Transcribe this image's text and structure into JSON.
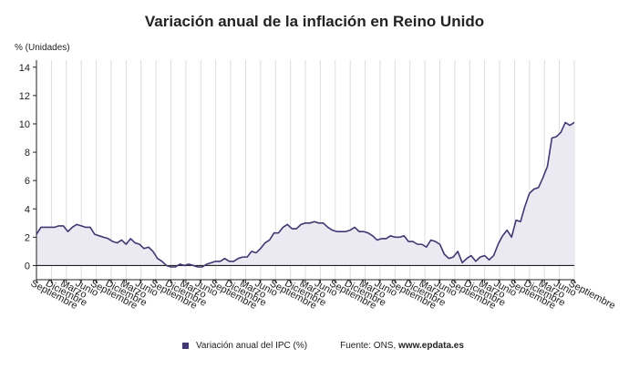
{
  "title": "Variación anual de la inflación en Reino Unido",
  "colors": {
    "line": "#413871",
    "fill": "#ebeaf3",
    "axis": "#222222",
    "grid": "#dddddd"
  },
  "legend": {
    "series_label": "Variación anual del IPC (%)",
    "source_prefix": "Fuente: ONS, ",
    "source_site": "www.epdata.es"
  },
  "chart_data": {
    "type": "area",
    "ylabel": "% (Unidades)",
    "ylim": [
      -1,
      14.5
    ],
    "yticks": [
      0,
      2,
      4,
      6,
      8,
      10,
      12,
      14
    ],
    "grid": "vertical",
    "x_tick_labels": [
      "Septiembre",
      "Diciembre",
      "Marzo",
      "Junio",
      "Septiembre",
      "Diciembre",
      "Marzo",
      "Junio",
      "Septiembre",
      "Diciembre",
      "Marzo",
      "Junio",
      "Septiembre",
      "Diciembre",
      "Marzo",
      "Junio",
      "Septiembre",
      "Diciembre",
      "Marzo",
      "Junio",
      "Septiembre",
      "Diciembre",
      "Marzo",
      "Junio",
      "Septiembre",
      "Diciembre",
      "Marzo",
      "Junio",
      "Septiembre",
      "Diciembre",
      "Marzo",
      "Junio",
      "Septiembre",
      "Diciembre",
      "Marzo",
      "Junio",
      "Septiembre"
    ],
    "series": [
      {
        "values": [
          2.2,
          2.7,
          2.7,
          2.7,
          2.7,
          2.8,
          2.8,
          2.4,
          2.7,
          2.9,
          2.8,
          2.7,
          2.7,
          2.2,
          2.1,
          2.0,
          1.9,
          1.7,
          1.6,
          1.8,
          1.5,
          1.9,
          1.6,
          1.5,
          1.2,
          1.3,
          1.0,
          0.5,
          0.3,
          0.0,
          -0.1,
          -0.1,
          0.1,
          0.0,
          0.1,
          0.0,
          -0.1,
          -0.1,
          0.1,
          0.2,
          0.3,
          0.3,
          0.5,
          0.3,
          0.3,
          0.5,
          0.6,
          0.6,
          1.0,
          0.9,
          1.2,
          1.6,
          1.8,
          2.3,
          2.3,
          2.7,
          2.9,
          2.6,
          2.6,
          2.9,
          3.0,
          3.0,
          3.1,
          3.0,
          3.0,
          2.7,
          2.5,
          2.4,
          2.4,
          2.4,
          2.5,
          2.7,
          2.4,
          2.4,
          2.3,
          2.1,
          1.8,
          1.9,
          1.9,
          2.1,
          2.0,
          2.0,
          2.1,
          1.7,
          1.7,
          1.5,
          1.5,
          1.3,
          1.8,
          1.7,
          1.5,
          0.8,
          0.5,
          0.6,
          1.0,
          0.2,
          0.5,
          0.7,
          0.3,
          0.6,
          0.7,
          0.4,
          0.7,
          1.5,
          2.1,
          2.5,
          2.0,
          3.2,
          3.1,
          4.2,
          5.1,
          5.4,
          5.5,
          6.2,
          7.0,
          9.0,
          9.1,
          9.4,
          10.1,
          9.9,
          10.1
        ]
      }
    ]
  }
}
